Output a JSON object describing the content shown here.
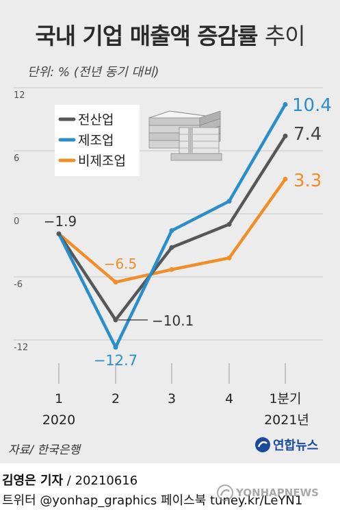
{
  "header": {
    "title_bold": "국내 기업 매출액 증감률",
    "title_light": "추이",
    "unit": "단위: % (전년 동기 대비)"
  },
  "chart_data": {
    "type": "line",
    "title": "국내 기업 매출액 증감률 추이",
    "x": [
      "1",
      "2",
      "3",
      "4",
      "1분기"
    ],
    "year_labels": [
      "2020",
      "2021년"
    ],
    "ylim": [
      -12,
      12
    ],
    "yticks": [
      12,
      6,
      0,
      -6,
      -12
    ],
    "yticklabels": [
      "12",
      "6",
      "0",
      "-6",
      "-12"
    ],
    "grid": true,
    "legend_position": "top-left",
    "series": [
      {
        "name": "전산업",
        "color": "#555759",
        "values": [
          -1.9,
          -10.1,
          -3.2,
          -1.0,
          7.4
        ]
      },
      {
        "name": "제조업",
        "color": "#2a8ec8",
        "values": [
          -1.9,
          -12.7,
          -1.6,
          1.2,
          10.4
        ]
      },
      {
        "name": "비제조업",
        "color": "#ef8f2a",
        "values": [
          -1.9,
          -6.5,
          -5.3,
          -4.2,
          3.3
        ]
      }
    ],
    "annotations": [
      {
        "text": "−1.9",
        "series": 0,
        "index": 0
      },
      {
        "text": "−6.5",
        "series": 2,
        "index": 1
      },
      {
        "text": "−10.1",
        "series": 0,
        "index": 1
      },
      {
        "text": "−12.7",
        "series": 1,
        "index": 1
      },
      {
        "text": "10.4",
        "series": 1,
        "index": 4
      },
      {
        "text": "7.4",
        "series": 0,
        "index": 4
      },
      {
        "text": "3.3",
        "series": 2,
        "index": 4
      }
    ]
  },
  "footer": {
    "source": "자료/ 한국은행",
    "logo": "연합뉴스",
    "reporter": "김영은 기자",
    "date": " / 20210616",
    "social": "트위터 @yonhap_graphics  페이스북 tuney.kr/LeYN1",
    "watermark": "YONHAPNEWS"
  }
}
